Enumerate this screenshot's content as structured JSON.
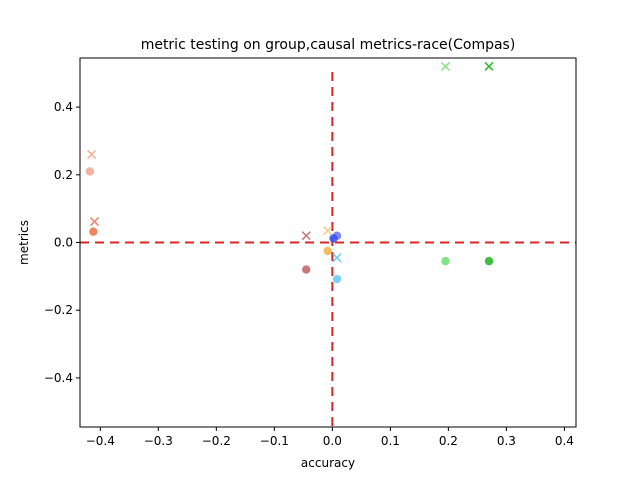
{
  "chart_data": {
    "type": "scatter",
    "title": "metric testing on group,causal metrics-race(Compas)",
    "xlabel": "accuracy",
    "ylabel": "metrics",
    "xlim": [
      -0.435,
      0.42
    ],
    "ylim": [
      -0.545,
      0.545
    ],
    "xticks": [
      -0.4,
      -0.3,
      -0.2,
      -0.1,
      0.0,
      0.1,
      0.2,
      0.3,
      0.4
    ],
    "xtick_labels": [
      "−0.4",
      "−0.3",
      "−0.2",
      "−0.1",
      "0.0",
      "0.1",
      "0.2",
      "0.3",
      "0.4"
    ],
    "yticks": [
      -0.4,
      -0.2,
      0.0,
      0.2,
      0.4
    ],
    "ytick_labels": [
      "−0.4",
      "−0.2",
      "0.0",
      "0.2",
      "0.4"
    ],
    "grid": false,
    "reference_lines": [
      {
        "orientation": "horizontal",
        "value": 0,
        "style": "dashed",
        "color": "#d62728"
      },
      {
        "orientation": "vertical",
        "value": 0,
        "style": "dashed",
        "color": "#d62728"
      }
    ],
    "points": [
      {
        "x": -0.415,
        "y": 0.26,
        "marker": "x",
        "color": "#f4a898"
      },
      {
        "x": -0.418,
        "y": 0.21,
        "marker": "o",
        "color": "#f4a390"
      },
      {
        "x": -0.41,
        "y": 0.062,
        "marker": "x",
        "color": "#ee7a5a"
      },
      {
        "x": -0.412,
        "y": 0.032,
        "marker": "o",
        "color": "#ec7040"
      },
      {
        "x": -0.045,
        "y": 0.02,
        "marker": "x",
        "color": "#c07070"
      },
      {
        "x": -0.045,
        "y": -0.08,
        "marker": "o",
        "color": "#c06060"
      },
      {
        "x": -0.008,
        "y": 0.035,
        "marker": "x",
        "color": "#f8c88a"
      },
      {
        "x": -0.008,
        "y": -0.025,
        "marker": "o",
        "color": "#f8b040"
      },
      {
        "x": 0.008,
        "y": 0.02,
        "marker": "o",
        "color": "#7070f0"
      },
      {
        "x": 0.002,
        "y": 0.012,
        "marker": "o",
        "color": "#3050f0"
      },
      {
        "x": 0.008,
        "y": -0.045,
        "marker": "x",
        "color": "#60c8f0"
      },
      {
        "x": 0.008,
        "y": -0.108,
        "marker": "o",
        "color": "#60c8f0"
      },
      {
        "x": 0.195,
        "y": 0.52,
        "marker": "x",
        "color": "#80e080"
      },
      {
        "x": 0.195,
        "y": -0.055,
        "marker": "o",
        "color": "#70dc70"
      },
      {
        "x": 0.27,
        "y": 0.52,
        "marker": "x",
        "color": "#20b020"
      },
      {
        "x": 0.27,
        "y": -0.055,
        "marker": "o",
        "color": "#20b020"
      }
    ]
  }
}
